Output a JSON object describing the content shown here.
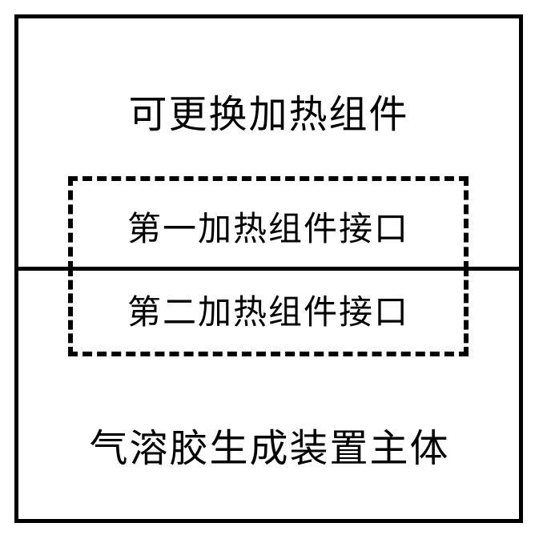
{
  "diagram": {
    "type": "block-diagram",
    "background_color": "#ffffff",
    "border_color": "#000000",
    "border_width": 5,
    "dashed_border_width": 6,
    "text_color": "#000000",
    "title_fontsize": 48,
    "label_fontsize": 42,
    "top_block": {
      "title": "可更换加热组件",
      "interface_label": "第一加热组件接口"
    },
    "bottom_block": {
      "title": "气溶胶生成装置主体",
      "interface_label": "第二加热组件接口"
    }
  }
}
